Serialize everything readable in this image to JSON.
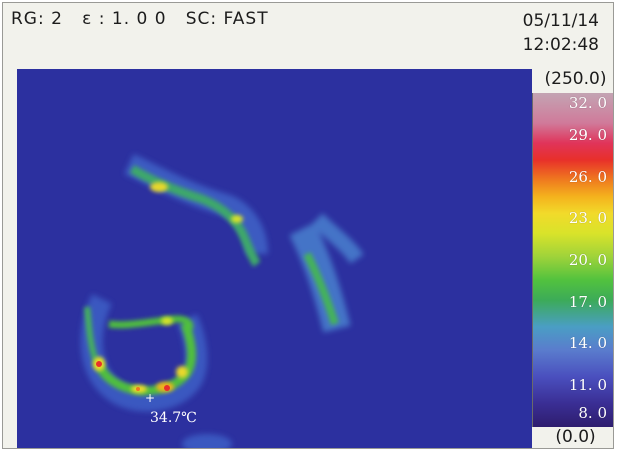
{
  "status": {
    "range": "RG: 2",
    "emissivity": "ε : 1. 0 0",
    "scan": "SC: FAST"
  },
  "datetime": {
    "date": "05/11/14",
    "time": "12:02:48"
  },
  "thermal_view": {
    "spot_temperature": "34.7℃",
    "cursor_symbol": "+"
  },
  "scale": {
    "max_label": "(250.0)",
    "min_label": "(0.0)",
    "ticks": [
      "32. 0",
      "29. 0",
      "26. 0",
      "23. 0",
      "20. 0",
      "17. 0",
      "14. 0",
      "11. 0",
      "8. 0"
    ]
  },
  "colors": {
    "background": "#2a2f9e",
    "hot": "#e8302a",
    "warm": "#f2da2a",
    "mid": "#52c23e",
    "cool": "#4a9ec4"
  }
}
